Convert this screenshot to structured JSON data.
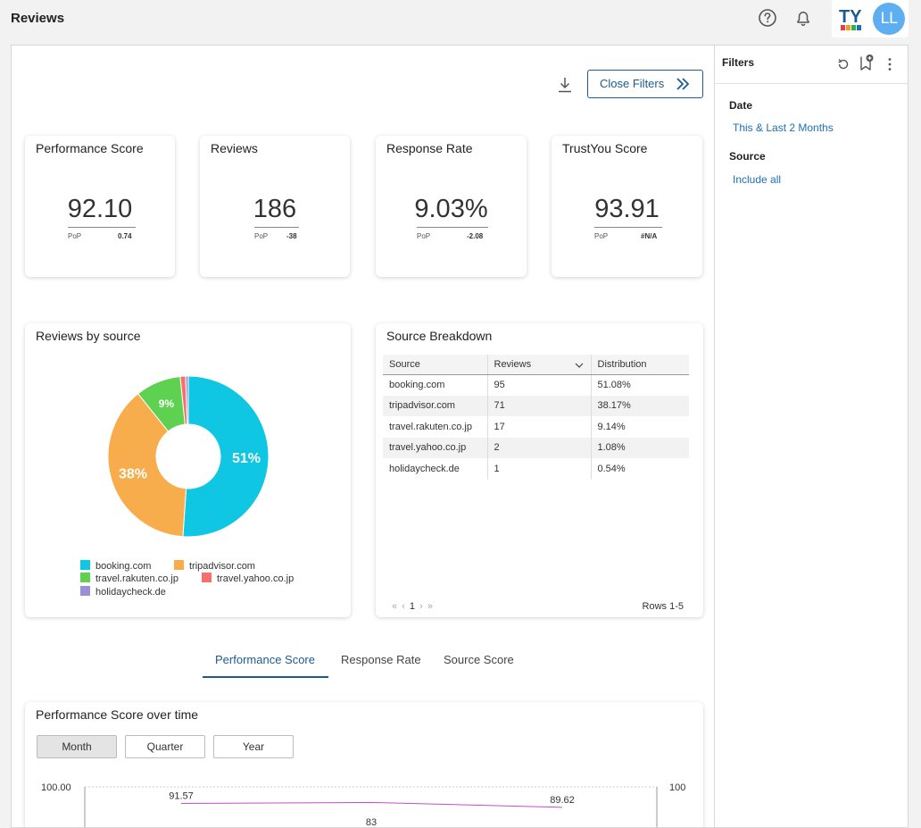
{
  "header": {
    "title": "Reviews",
    "logo_text": "TY",
    "avatar_initials": "LL"
  },
  "toolbar": {
    "close_filters_label": "Close Filters"
  },
  "kpis": [
    {
      "title": "Performance Score",
      "value": "92.10",
      "pop_label": "PoP",
      "delta": "0.74"
    },
    {
      "title": "Reviews",
      "value": "186",
      "pop_label": "PoP",
      "delta": "-38"
    },
    {
      "title": "Response Rate",
      "value": "9.03%",
      "pop_label": "PoP",
      "delta": "-2.08"
    },
    {
      "title": "TrustYou Score",
      "value": "93.91",
      "pop_label": "PoP",
      "delta": "#N/A"
    }
  ],
  "reviews_by_source": {
    "title": "Reviews by source",
    "legend": [
      "booking.com",
      "tripadvisor.com",
      "travel.rakuten.co.jp",
      "travel.yahoo.co.jp",
      "holidaycheck.de"
    ],
    "slice_labels": [
      "51%",
      "38%",
      "9%"
    ]
  },
  "chart_data": [
    {
      "type": "pie",
      "title": "Reviews by source",
      "categories": [
        "booking.com",
        "tripadvisor.com",
        "travel.rakuten.co.jp",
        "travel.yahoo.co.jp",
        "holidaycheck.de"
      ],
      "values": [
        95,
        71,
        17,
        2,
        1
      ],
      "percent_labels": [
        "51%",
        "38%",
        "9%",
        "",
        ""
      ],
      "colors": [
        "#0fc6e3",
        "#f8ad4c",
        "#5fd150",
        "#f5706a",
        "#9b8fd8"
      ],
      "donut": true,
      "legend_position": "bottom"
    },
    {
      "type": "line",
      "title": "Performance Score over time",
      "y_axis_top_label": "100.00",
      "y2_axis_top_label": "100",
      "series": [
        {
          "values": [
            91.57,
            92.1,
            89.62
          ]
        }
      ],
      "point_labels": [
        "91.57",
        "",
        "89.62"
      ],
      "secondary_labels": [
        "83"
      ],
      "line_color": "#c050c8"
    }
  ],
  "source_breakdown": {
    "title": "Source Breakdown",
    "columns": [
      "Source",
      "Reviews",
      "Distribution"
    ],
    "rows": [
      [
        "booking.com",
        "95",
        "51.08%"
      ],
      [
        "tripadvisor.com",
        "71",
        "38.17%"
      ],
      [
        "travel.rakuten.co.jp",
        "17",
        "9.14%"
      ],
      [
        "travel.yahoo.co.jp",
        "2",
        "1.08%"
      ],
      [
        "holidaycheck.de",
        "1",
        "0.54%"
      ]
    ],
    "pager_page": "1",
    "rows_info": "Rows 1-5"
  },
  "tabs": [
    "Performance Score",
    "Response Rate",
    "Source Score"
  ],
  "timeline": {
    "title": "Performance Score over time",
    "granularity": [
      "Month",
      "Quarter",
      "Year"
    ],
    "y_left_top": "100.00",
    "y_right_top": "100",
    "labels": {
      "first": "91.57",
      "last": "89.62",
      "mid": "83"
    }
  },
  "filters": {
    "title": "Filters",
    "date_label": "Date",
    "date_value": "This & Last 2 Months",
    "source_label": "Source",
    "source_value": "Include all"
  },
  "colors": {
    "accent": "#1d5a94",
    "link": "#1d6fb8",
    "avatar": "#5eaef2"
  }
}
